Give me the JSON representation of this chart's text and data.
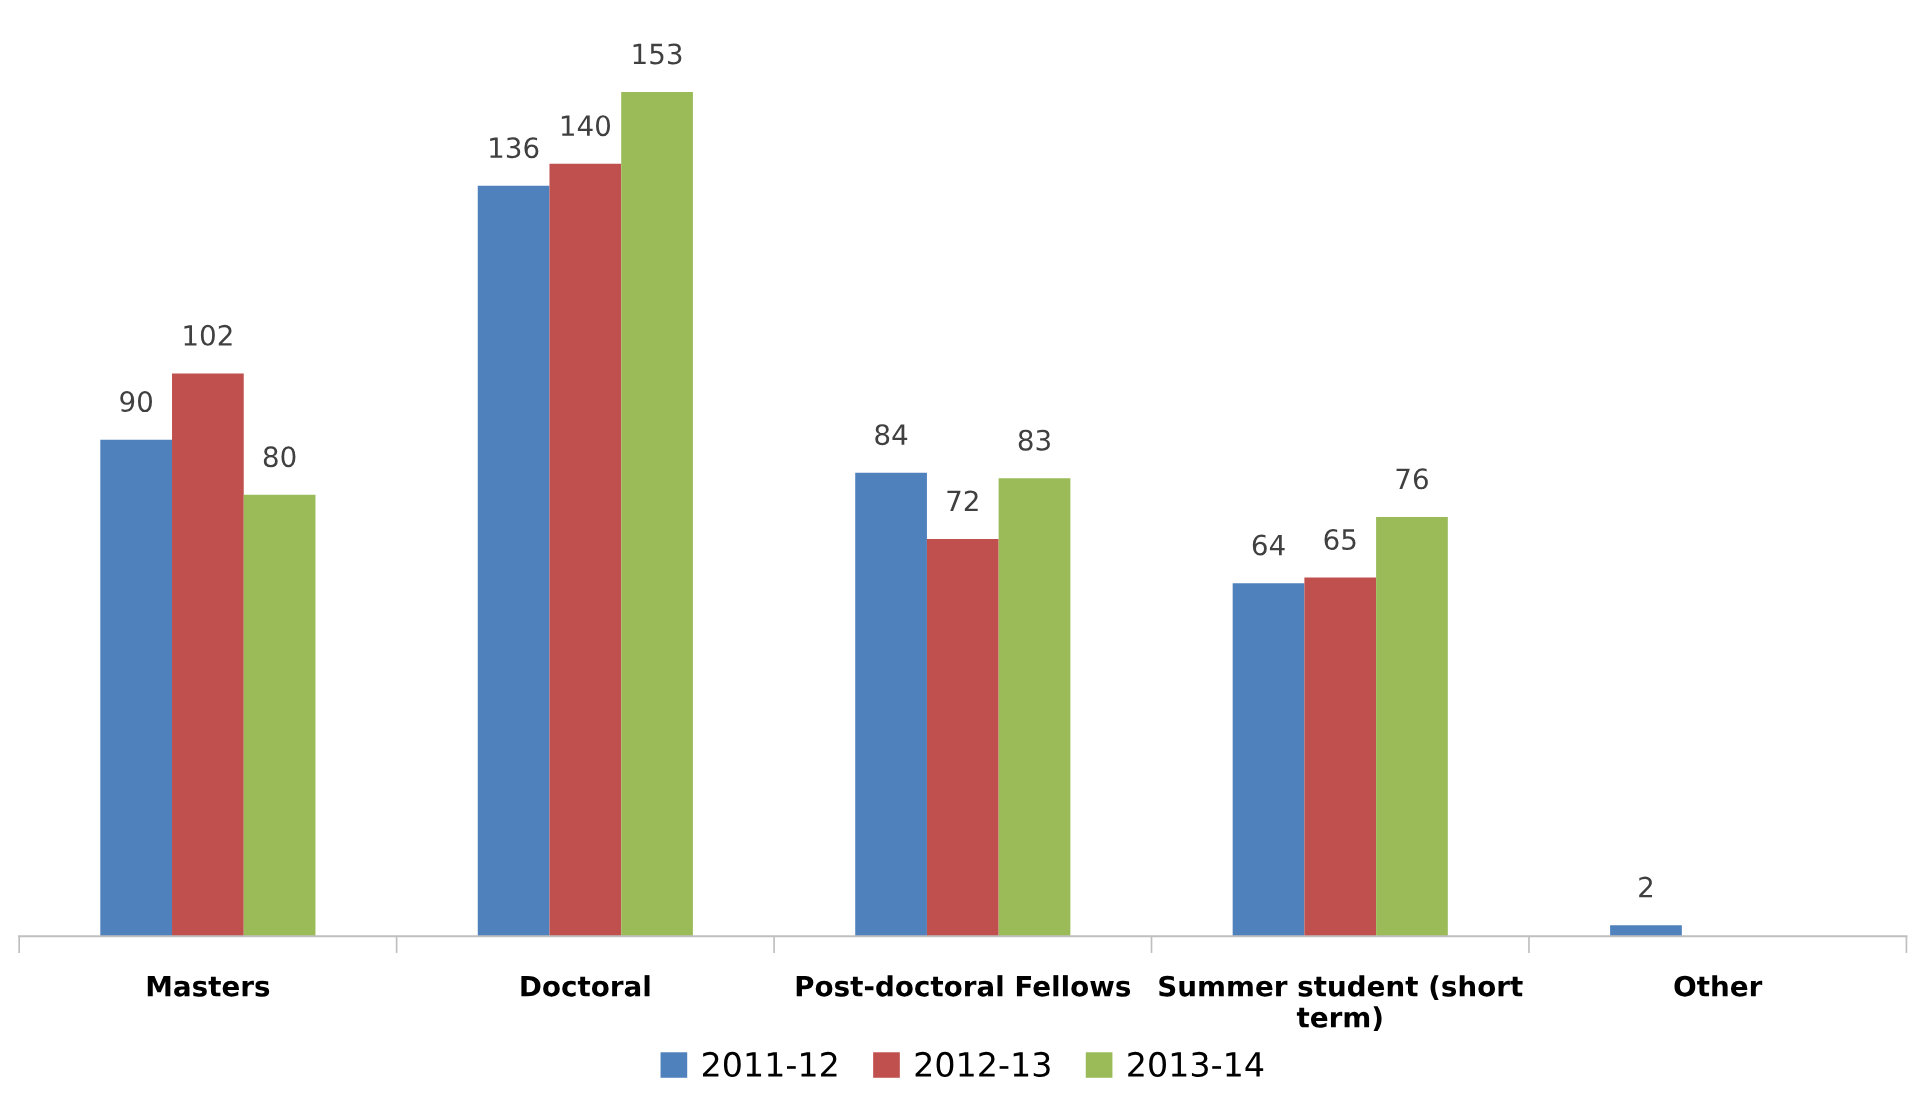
{
  "chart_data": {
    "type": "bar",
    "categories": [
      "Masters",
      "Doctoral",
      "Post-doctoral Fellows",
      "Summer student (short\nterm)",
      "Other"
    ],
    "series": [
      {
        "name": "2011-12",
        "color": "#4f81bd",
        "values": [
          90,
          136,
          84,
          64,
          2
        ]
      },
      {
        "name": "2012-13",
        "color": "#c0504d",
        "values": [
          102,
          140,
          72,
          65,
          null
        ]
      },
      {
        "name": "2013-14",
        "color": "#9bbb59",
        "values": [
          80,
          153,
          83,
          76,
          null
        ]
      }
    ],
    "data_labels": true,
    "legend": "bottom",
    "grid": false
  }
}
